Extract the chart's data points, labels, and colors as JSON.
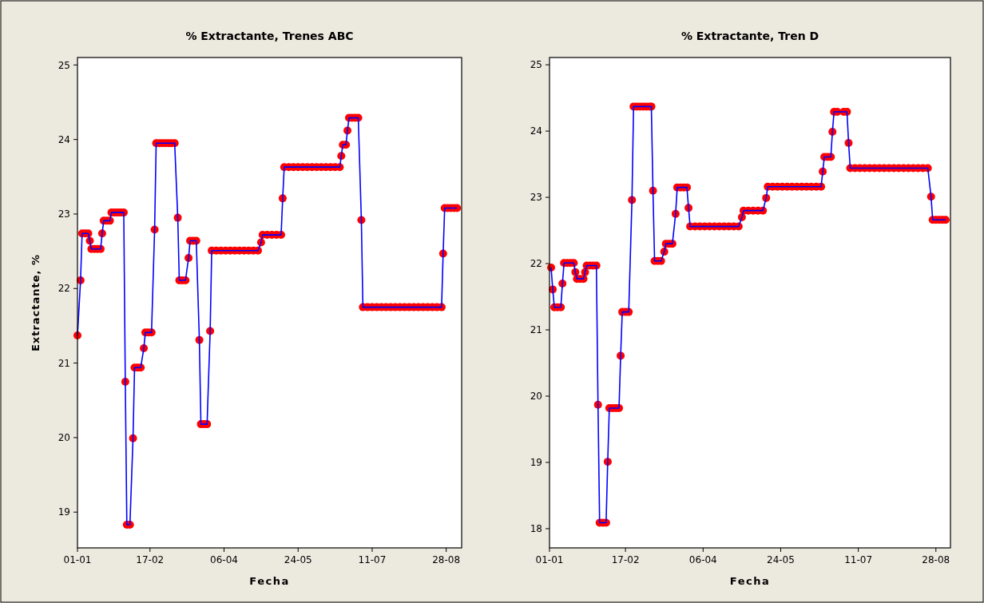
{
  "chart_data": [
    {
      "type": "line",
      "title": "% Extractante, Trenes ABC",
      "xlabel": "Fecha",
      "ylabel": "Extractante, %",
      "marker": "circle",
      "xlim": [
        "--01-01",
        "--09-07"
      ],
      "ylim": [
        18.52,
        25.1
      ],
      "xticks": [
        {
          "value": "--01-01",
          "label": "01-01"
        },
        {
          "value": "--02-17",
          "label": "17-02"
        },
        {
          "value": "--04-06",
          "label": "06-04"
        },
        {
          "value": "--05-24",
          "label": "24-05"
        },
        {
          "value": "--07-11",
          "label": "11-07"
        },
        {
          "value": "--08-28",
          "label": "28-08"
        }
      ],
      "yticks": [
        19,
        20,
        21,
        22,
        23,
        24,
        25
      ],
      "x": [
        "--01-01",
        "--01-03",
        "--01-04",
        "--01-06",
        "--01-08",
        "--01-09",
        "--01-10",
        "--01-12",
        "--01-14",
        "--01-16",
        "--01-17",
        "--01-18",
        "--01-20",
        "--01-22",
        "--01-23",
        "--01-25",
        "--01-27",
        "--01-29",
        "--01-31",
        "--02-01",
        "--02-02",
        "--02-04",
        "--02-06",
        "--02-07",
        "--02-09",
        "--02-11",
        "--02-13",
        "--02-14",
        "--02-16",
        "--02-18",
        "--02-20",
        "--02-21",
        "--02-23",
        "--02-25",
        "--02-27",
        "--03-01",
        "--03-03",
        "--03-05",
        "--03-07",
        "--03-08",
        "--03-10",
        "--03-12",
        "--03-14",
        "--03-15",
        "--03-17",
        "--03-19",
        "--03-21",
        "--03-22",
        "--03-24",
        "--03-26",
        "--03-28",
        "--03-29",
        "--04-01",
        "--04-04",
        "--04-07",
        "--04-10",
        "--04-13",
        "--04-16",
        "--04-19",
        "--04-22",
        "--04-25",
        "--04-28",
        "--04-30",
        "--05-01",
        "--05-04",
        "--05-07",
        "--05-10",
        "--05-13",
        "--05-14",
        "--05-15",
        "--05-18",
        "--05-21",
        "--05-24",
        "--05-27",
        "--05-30",
        "--06-02",
        "--06-05",
        "--06-08",
        "--06-11",
        "--06-14",
        "--06-17",
        "--06-20",
        "--06-21",
        "--06-22",
        "--06-24",
        "--06-25",
        "--06-26",
        "--06-28",
        "--06-30",
        "--07-02",
        "--07-04",
        "--07-05",
        "--07-08",
        "--07-11",
        "--07-14",
        "--07-17",
        "--07-20",
        "--07-23",
        "--07-26",
        "--07-29",
        "--08-01",
        "--08-04",
        "--08-07",
        "--08-10",
        "--08-13",
        "--08-16",
        "--08-19",
        "--08-22",
        "--08-25",
        "--08-26",
        "--08-27",
        "--08-29",
        "--08-31",
        "--09-02",
        "--09-04"
      ],
      "series": [
        {
          "color": "#0000ff",
          "colors": [
            "#ff0000",
            "#ff0000",
            "#ff0000",
            "#ff0000",
            "#ff0000",
            "#ff0000",
            "#ff0000",
            "#ff0000",
            "#ff0000",
            "#ff0000",
            "#ff0000",
            "#ff0000",
            "#ff0000",
            "#ff0000",
            "#ff0000",
            "#ff0000",
            "#ff0000",
            "#ff0000",
            "#ff0000",
            "#ff0000",
            "#ff0000",
            "#ff0000",
            "#ff0000",
            "#ff0000",
            "#ff0000",
            "#ff0000",
            "#ff0000",
            "#ff0000",
            "#ff0000",
            "#ff0000",
            "#ff0000",
            "#ff0000",
            "#ff0000",
            "#ff0000",
            "#ff0000",
            "#ff0000",
            "#ff0000",
            "#ff0000",
            "#ff0000",
            "#ff0000",
            "#ff0000",
            "#ff0000",
            "#ff0000",
            "#ff0000",
            "#ff0000",
            "#ff0000",
            "#ff0000",
            "#ff0000",
            "#ff0000",
            "#ff0000",
            "#ff0000",
            "#ff0000",
            "#ff0000",
            "#ff0000",
            "#ff0000",
            "#ff0000",
            "#ff0000",
            "#ff0000",
            "#ff0000",
            "#ff0000",
            "#ff0000",
            "#ff0000",
            "#ff0000",
            "#ff0000",
            "#ff0000",
            "#ff0000",
            "#ff0000",
            "#ff0000",
            "#ff0000",
            "#ff0000",
            "#ff0000",
            "#ff0000",
            "#ff0000",
            "#ff0000",
            "#ff0000",
            "#ff0000",
            "#ff0000",
            "#ff0000",
            "#ff0000",
            "#ff0000",
            "#ff0000",
            "#ff0000",
            "#ff0000",
            "#ff0000",
            "#ff0000",
            "#ff0000",
            "#ff0000",
            "#ff0000",
            "#ff0000",
            "#ff0000",
            "#ff0000",
            "#ff0000",
            "#ff0000",
            "#ff0000",
            "#ff0000",
            "#ff0000",
            "#ff0000",
            "#ff0000",
            "#ff0000",
            "#ff0000",
            "#ff0000",
            "#ff0000",
            "#ff0000",
            "#ff0000",
            "#ff0000",
            "#ff0000",
            "#ff0000",
            "#ff0000",
            "#ff0000",
            "#ff0000",
            "#ff0000",
            "#ff0000",
            "#ff0000",
            "#ff0000",
            "#ff0000"
          ],
          "values": [
            21.37,
            22.11,
            22.74,
            22.74,
            22.74,
            22.64,
            22.53,
            22.53,
            22.53,
            22.53,
            22.74,
            22.91,
            22.91,
            22.91,
            23.02,
            23.02,
            23.02,
            23.02,
            23.02,
            20.75,
            18.83,
            18.83,
            19.99,
            20.94,
            20.94,
            20.94,
            21.2,
            21.41,
            21.41,
            21.41,
            22.79,
            23.95,
            23.95,
            23.95,
            23.95,
            23.95,
            23.95,
            23.95,
            22.95,
            22.11,
            22.11,
            22.11,
            22.41,
            22.64,
            22.64,
            22.64,
            21.31,
            20.18,
            20.18,
            20.18,
            21.43,
            22.51,
            22.51,
            22.51,
            22.51,
            22.51,
            22.51,
            22.51,
            22.51,
            22.51,
            22.51,
            22.51,
            22.62,
            22.72,
            22.72,
            22.72,
            22.72,
            22.72,
            23.21,
            23.63,
            23.63,
            23.63,
            23.63,
            23.63,
            23.63,
            23.63,
            23.63,
            23.63,
            23.63,
            23.63,
            23.63,
            23.63,
            23.78,
            23.93,
            23.93,
            24.12,
            24.29,
            24.29,
            24.29,
            24.29,
            22.92,
            21.75,
            21.75,
            21.75,
            21.75,
            21.75,
            21.75,
            21.75,
            21.75,
            21.75,
            21.75,
            21.75,
            21.75,
            21.75,
            21.75,
            21.75,
            21.75,
            21.75,
            21.75,
            22.47,
            23.08,
            23.08,
            23.08,
            23.08,
            23.08
          ]
        }
      ]
    },
    {
      "type": "line",
      "title": "% Extractante, Tren D",
      "xlabel": "Fecha",
      "marker": "circle",
      "xlim": [
        "--01-01",
        "--09-06"
      ],
      "ylim": [
        17.71,
        25.11
      ],
      "xticks": [
        {
          "value": "--01-01",
          "label": "01-01"
        },
        {
          "value": "--02-17",
          "label": "17-02"
        },
        {
          "value": "--04-06",
          "label": "06-04"
        },
        {
          "value": "--05-24",
          "label": "24-05"
        },
        {
          "value": "--07-11",
          "label": "11-07"
        },
        {
          "value": "--08-28",
          "label": "28-08"
        }
      ],
      "yticks": [
        18,
        19,
        20,
        21,
        22,
        23,
        24,
        25
      ],
      "x": [
        "--01-02",
        "--01-03",
        "--01-04",
        "--01-06",
        "--01-08",
        "--01-09",
        "--01-10",
        "--01-12",
        "--01-14",
        "--01-16",
        "--01-17",
        "--01-18",
        "--01-20",
        "--01-22",
        "--01-23",
        "--01-24",
        "--01-26",
        "--01-28",
        "--01-30",
        "--01-31",
        "--02-01",
        "--02-03",
        "--02-05",
        "--02-06",
        "--02-07",
        "--02-09",
        "--02-11",
        "--02-13",
        "--02-14",
        "--02-15",
        "--02-17",
        "--02-19",
        "--02-21",
        "--02-22",
        "--02-24",
        "--02-26",
        "--02-28",
        "--03-02",
        "--03-04",
        "--03-05",
        "--03-06",
        "--03-07",
        "--03-09",
        "--03-11",
        "--03-13",
        "--03-14",
        "--03-16",
        "--03-18",
        "--03-20",
        "--03-21",
        "--03-23",
        "--03-25",
        "--03-27",
        "--03-28",
        "--03-29",
        "--04-01",
        "--04-04",
        "--04-07",
        "--04-10",
        "--04-13",
        "--04-16",
        "--04-19",
        "--04-22",
        "--04-25",
        "--04-28",
        "--04-30",
        "--05-01",
        "--05-04",
        "--05-07",
        "--05-10",
        "--05-13",
        "--05-15",
        "--05-16",
        "--05-19",
        "--05-22",
        "--05-25",
        "--05-28",
        "--05-31",
        "--06-03",
        "--06-06",
        "--06-09",
        "--06-12",
        "--06-15",
        "--06-18",
        "--06-19",
        "--06-20",
        "--06-22",
        "--06-24",
        "--06-25",
        "--06-26",
        "--06-28",
        "--07-02",
        "--07-04",
        "--07-05",
        "--07-06",
        "--07-09",
        "--07-12",
        "--07-15",
        "--07-18",
        "--07-21",
        "--07-24",
        "--07-27",
        "--07-30",
        "--08-02",
        "--08-05",
        "--08-08",
        "--08-11",
        "--08-14",
        "--08-17",
        "--08-20",
        "--08-23",
        "--08-25",
        "--08-26",
        "--08-28",
        "--08-30",
        "--09-01",
        "--09-03"
      ],
      "series": [
        {
          "color": "#0000ff",
          "colors": [
            "#ff0000",
            "#ff0000",
            "#ff0000",
            "#ff0000",
            "#ff0000",
            "#ff0000",
            "#ff0000",
            "#ff0000",
            "#ff0000",
            "#ff0000",
            "#ff0000",
            "#ff0000",
            "#ff0000",
            "#ff0000",
            "#ff0000",
            "#ff0000",
            "#ff0000",
            "#ff0000",
            "#ff0000",
            "#ff0000",
            "#ff0000",
            "#ff0000",
            "#ff0000",
            "#ff0000",
            "#ff0000",
            "#ff0000",
            "#ff0000",
            "#ff0000",
            "#ff0000",
            "#ff0000",
            "#ff0000",
            "#ff0000",
            "#ff0000",
            "#ff0000",
            "#ff0000",
            "#ff0000",
            "#ff0000",
            "#ff0000",
            "#ff0000",
            "#ff0000",
            "#ff0000",
            "#ff0000",
            "#ff0000",
            "#ff0000",
            "#ff0000",
            "#ff0000",
            "#ff0000",
            "#ff0000",
            "#ff0000",
            "#ff0000",
            "#ff0000",
            "#ff0000",
            "#ff0000",
            "#ff0000",
            "#ff0000",
            "#ff0000",
            "#ff0000",
            "#ff0000",
            "#ff0000",
            "#ff0000",
            "#ff0000",
            "#ff0000",
            "#ff0000",
            "#ff0000",
            "#ff0000",
            "#ff0000",
            "#ff0000",
            "#ff0000",
            "#ff0000",
            "#ff0000",
            "#ff0000",
            "#ff0000",
            "#ff0000",
            "#ff0000",
            "#ff0000",
            "#ff0000",
            "#ff0000",
            "#ff0000",
            "#ff0000",
            "#ff0000",
            "#ff0000",
            "#ff0000",
            "#ff0000",
            "#ff0000",
            "#ff0000",
            "#ff0000",
            "#ff0000",
            "#ff0000",
            "#ff0000",
            "#ff0000",
            "#ff0000",
            "#ff0000",
            "#ff0000",
            "#ff0000",
            "#ff0000",
            "#ff0000",
            "#ff0000",
            "#ff0000",
            "#ff0000",
            "#ff0000",
            "#ff0000",
            "#ff0000",
            "#ff0000",
            "#ff0000",
            "#ff0000",
            "#ff0000",
            "#ff0000",
            "#ff0000",
            "#ff0000",
            "#ff0000",
            "#ff0000",
            "#ff0000",
            "#ff0000",
            "#ff0000",
            "#ff0000",
            "#ff0000",
            "#ff0000"
          ],
          "values": [
            21.94,
            21.61,
            21.34,
            21.34,
            21.34,
            21.7,
            22.01,
            22.01,
            22.01,
            22.01,
            21.87,
            21.77,
            21.77,
            21.77,
            21.87,
            21.97,
            21.97,
            21.97,
            21.97,
            19.87,
            18.09,
            18.09,
            18.09,
            19.01,
            19.82,
            19.82,
            19.82,
            19.82,
            20.61,
            21.27,
            21.27,
            21.27,
            22.96,
            24.37,
            24.37,
            24.37,
            24.37,
            24.37,
            24.37,
            24.37,
            23.1,
            22.04,
            22.04,
            22.04,
            22.18,
            22.3,
            22.3,
            22.3,
            22.75,
            23.15,
            23.15,
            23.15,
            23.15,
            22.84,
            22.56,
            22.56,
            22.56,
            22.56,
            22.56,
            22.56,
            22.56,
            22.56,
            22.56,
            22.56,
            22.56,
            22.7,
            22.8,
            22.8,
            22.8,
            22.8,
            22.8,
            22.99,
            23.16,
            23.16,
            23.16,
            23.16,
            23.16,
            23.16,
            23.16,
            23.16,
            23.16,
            23.16,
            23.16,
            23.16,
            23.39,
            23.61,
            23.61,
            23.61,
            23.99,
            24.29,
            24.29,
            24.29,
            24.29,
            23.82,
            23.44,
            23.44,
            23.44,
            23.44,
            23.44,
            23.44,
            23.44,
            23.44,
            23.44,
            23.44,
            23.44,
            23.44,
            23.44,
            23.44,
            23.44,
            23.44,
            23.44,
            23.01,
            22.66,
            22.66,
            22.66,
            22.66,
            22.66
          ]
        }
      ]
    }
  ]
}
